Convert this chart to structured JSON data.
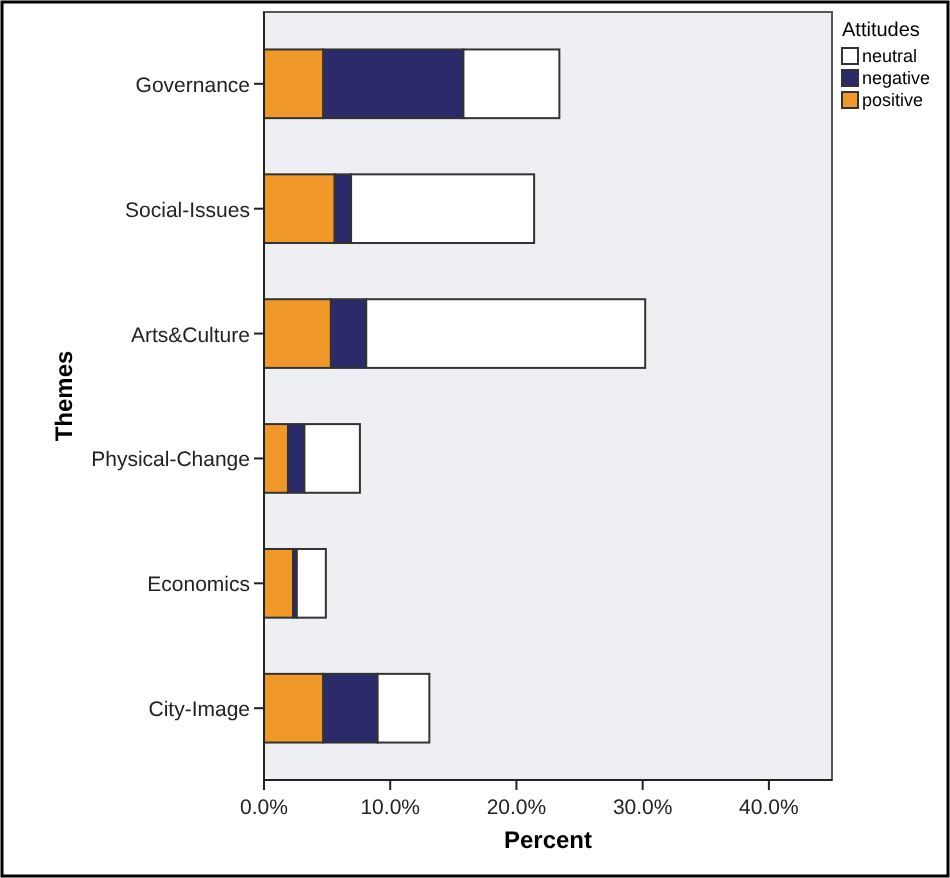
{
  "chart_data": {
    "type": "bar",
    "orientation": "horizontal",
    "stacked": true,
    "xlabel": "Percent",
    "ylabel": "Themes",
    "legend_title": "Attitudes",
    "legend": "right",
    "categories": [
      "Governance",
      "Social-Issues",
      "Arts&Culture",
      "Physical-Change",
      "Economics",
      "City-Image"
    ],
    "series": [
      {
        "name": "positive",
        "color": "#f0992a",
        "values": [
          4.7,
          5.6,
          5.3,
          1.9,
          2.3,
          4.7
        ]
      },
      {
        "name": "negative",
        "color": "#2b2a6b",
        "values": [
          11.1,
          1.3,
          2.8,
          1.3,
          0.3,
          4.3
        ]
      },
      {
        "name": "neutral",
        "color": "#ffffff",
        "values": [
          7.6,
          14.5,
          22.1,
          4.4,
          2.3,
          4.1
        ]
      }
    ],
    "xlim": [
      0,
      45
    ],
    "xticks": [
      {
        "value": 0,
        "label": "0.0%"
      },
      {
        "value": 10,
        "label": "10.0%"
      },
      {
        "value": 20,
        "label": "20.0%"
      },
      {
        "value": 30,
        "label": "30.0%"
      },
      {
        "value": 40,
        "label": "40.0%"
      }
    ]
  }
}
